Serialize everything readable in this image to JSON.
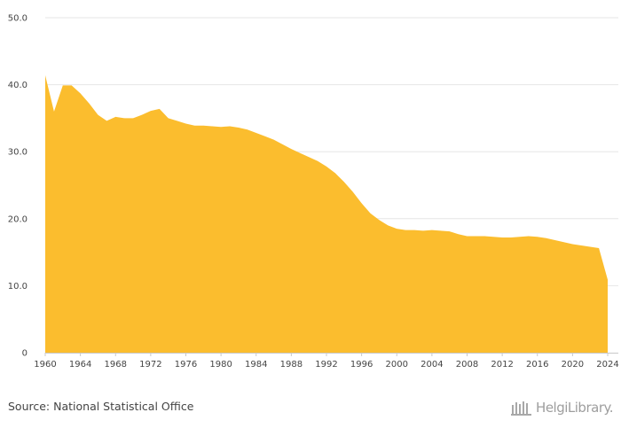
{
  "chart_data": {
    "type": "area",
    "title": "",
    "xlabel": "",
    "ylabel": "",
    "color": "#FBBD2E",
    "grid": true,
    "legend": "none",
    "xlim": [
      1960,
      2024
    ],
    "ylim": [
      0,
      50
    ],
    "x_ticks": [
      "1960",
      "1964",
      "1968",
      "1972",
      "1976",
      "1980",
      "1984",
      "1988",
      "1992",
      "1996",
      "2000",
      "2004",
      "2008",
      "2012",
      "2016",
      "2020",
      "2024"
    ],
    "y_ticks": [
      "0",
      "10.0",
      "20.0",
      "30.0",
      "40.0",
      "50.0"
    ],
    "x": [
      1960,
      1961,
      1962,
      1963,
      1964,
      1965,
      1966,
      1967,
      1968,
      1969,
      1970,
      1971,
      1972,
      1973,
      1974,
      1975,
      1976,
      1977,
      1978,
      1979,
      1980,
      1981,
      1982,
      1983,
      1984,
      1985,
      1986,
      1987,
      1988,
      1989,
      1990,
      1991,
      1992,
      1993,
      1994,
      1995,
      1996,
      1997,
      1998,
      1999,
      2000,
      2001,
      2002,
      2003,
      2004,
      2005,
      2006,
      2007,
      2008,
      2009,
      2010,
      2011,
      2012,
      2013,
      2014,
      2015,
      2016,
      2017,
      2018,
      2019,
      2020,
      2021,
      2022,
      2023,
      2024
    ],
    "values": [
      41.4,
      36.0,
      39.9,
      39.9,
      38.7,
      37.2,
      35.5,
      34.6,
      35.2,
      35.0,
      35.0,
      35.5,
      36.1,
      36.4,
      35.0,
      34.6,
      34.2,
      33.9,
      33.9,
      33.8,
      33.7,
      33.8,
      33.6,
      33.3,
      32.8,
      32.3,
      31.8,
      31.1,
      30.4,
      29.8,
      29.2,
      28.6,
      27.8,
      26.8,
      25.5,
      24.0,
      22.3,
      20.8,
      19.8,
      19.0,
      18.5,
      18.3,
      18.3,
      18.2,
      18.3,
      18.2,
      18.1,
      17.7,
      17.4,
      17.4,
      17.4,
      17.3,
      17.2,
      17.2,
      17.3,
      17.4,
      17.3,
      17.1,
      16.8,
      16.5,
      16.2,
      16.0,
      15.8,
      15.6,
      10.9
    ]
  },
  "footer": {
    "source": "Source: National Statistical Office",
    "brand_name": "HelgiLibrary."
  }
}
